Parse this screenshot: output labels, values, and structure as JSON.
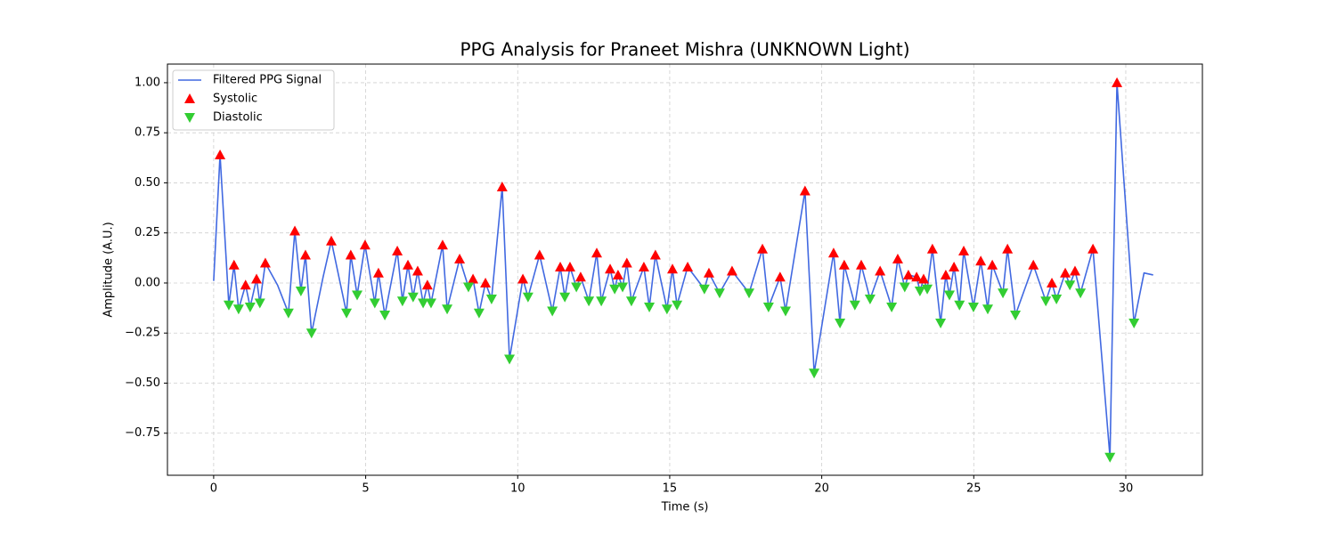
{
  "chart_data": {
    "type": "line",
    "title": "PPG Analysis for Praneet Mishra (UNKNOWN Light)",
    "x_label": "Time (s)",
    "y_label": "Amplitude (A.U.)",
    "xlim": [
      -1.52,
      32.52
    ],
    "ylim": [
      -0.96,
      1.093
    ],
    "xticks": [
      0,
      5,
      10,
      15,
      20,
      25,
      30
    ],
    "yticks": [
      {
        "value": -0.75,
        "label": "−0.75"
      },
      {
        "value": -0.5,
        "label": "−0.50"
      },
      {
        "value": -0.25,
        "label": "−0.25"
      },
      {
        "value": 0,
        "label": "0.00"
      },
      {
        "value": 0.25,
        "label": "0.25"
      },
      {
        "value": 0.5,
        "label": "0.50"
      },
      {
        "value": 0.75,
        "label": "0.75"
      },
      {
        "value": 1,
        "label": "1.00"
      }
    ],
    "grid": true,
    "legend": "upper-left",
    "series": [
      {
        "name": "Filtered PPG Signal",
        "kind": "line",
        "color": "#4169e1",
        "x": [
          0.0,
          0.21,
          0.5,
          0.67,
          0.82,
          1.05,
          1.2,
          1.41,
          1.52,
          1.7,
          2.1,
          2.46,
          2.67,
          2.87,
          3.02,
          3.22,
          3.6,
          3.87,
          4.37,
          4.51,
          4.72,
          4.98,
          5.3,
          5.42,
          5.63,
          6.04,
          6.21,
          6.39,
          6.56,
          6.71,
          6.89,
          7.03,
          7.15,
          7.53,
          7.68,
          8.09,
          8.38,
          8.53,
          8.73,
          8.94,
          9.14,
          9.49,
          9.73,
          10.17,
          10.34,
          10.72,
          11.14,
          11.4,
          11.55,
          11.72,
          11.93,
          12.07,
          12.34,
          12.6,
          12.75,
          13.04,
          13.19,
          13.3,
          13.45,
          13.59,
          13.74,
          14.15,
          14.33,
          14.53,
          14.91,
          15.09,
          15.24,
          15.59,
          16.14,
          16.29,
          16.64,
          17.05,
          17.61,
          18.05,
          18.25,
          18.63,
          18.81,
          19.45,
          19.75,
          20.39,
          20.6,
          20.74,
          21.09,
          21.3,
          21.59,
          21.92,
          22.3,
          22.5,
          22.73,
          22.85,
          23.12,
          23.23,
          23.35,
          23.47,
          23.64,
          23.91,
          24.08,
          24.2,
          24.35,
          24.53,
          24.67,
          24.99,
          25.23,
          25.46,
          25.61,
          25.96,
          26.11,
          26.37,
          26.96,
          27.37,
          27.57,
          27.72,
          28.01,
          28.16,
          28.33,
          28.51,
          28.92,
          29.48,
          29.71,
          30.27,
          30.6,
          30.9
        ],
        "values": [
          0.01,
          0.64,
          -0.11,
          0.09,
          -0.13,
          -0.01,
          -0.12,
          0.02,
          -0.1,
          0.1,
          -0.01,
          -0.15,
          0.26,
          -0.04,
          0.14,
          -0.25,
          0.03,
          0.21,
          -0.15,
          0.14,
          -0.06,
          0.19,
          -0.1,
          0.05,
          -0.16,
          0.16,
          -0.09,
          0.09,
          -0.07,
          0.06,
          -0.1,
          -0.01,
          -0.1,
          0.19,
          -0.13,
          0.12,
          -0.02,
          0.02,
          -0.15,
          0.0,
          -0.08,
          0.48,
          -0.38,
          0.02,
          -0.07,
          0.14,
          -0.14,
          0.08,
          -0.07,
          0.08,
          -0.02,
          0.03,
          -0.09,
          0.15,
          -0.09,
          0.07,
          -0.03,
          0.04,
          -0.02,
          0.1,
          -0.09,
          0.08,
          -0.12,
          0.14,
          -0.13,
          0.07,
          -0.11,
          0.08,
          -0.03,
          0.05,
          -0.05,
          0.06,
          -0.05,
          0.17,
          -0.12,
          0.03,
          -0.14,
          0.46,
          -0.45,
          0.15,
          -0.2,
          0.09,
          -0.11,
          0.09,
          -0.08,
          0.06,
          -0.12,
          0.12,
          -0.02,
          0.04,
          0.03,
          -0.04,
          0.02,
          -0.03,
          0.17,
          -0.2,
          0.04,
          -0.06,
          0.08,
          -0.11,
          0.16,
          -0.12,
          0.11,
          -0.13,
          0.09,
          -0.05,
          0.17,
          -0.16,
          0.09,
          -0.09,
          0.0,
          -0.08,
          0.05,
          -0.01,
          0.06,
          -0.05,
          0.17,
          -0.87,
          1.0,
          -0.2,
          0.05,
          0.04
        ]
      },
      {
        "name": "Systolic",
        "kind": "scatter-up",
        "color": "#ff0000",
        "x": [
          0.21,
          0.67,
          1.05,
          1.41,
          1.7,
          2.67,
          3.02,
          3.87,
          4.51,
          4.98,
          5.42,
          6.04,
          6.39,
          6.71,
          7.03,
          7.53,
          8.09,
          8.53,
          8.94,
          9.49,
          10.17,
          10.72,
          11.4,
          11.72,
          12.07,
          12.6,
          13.04,
          13.3,
          13.59,
          14.15,
          14.53,
          15.09,
          15.59,
          16.29,
          17.05,
          18.05,
          18.63,
          19.45,
          20.39,
          20.74,
          21.3,
          21.92,
          22.5,
          22.85,
          23.12,
          23.35,
          23.64,
          24.08,
          24.35,
          24.67,
          25.23,
          25.61,
          26.11,
          26.96,
          27.57,
          28.01,
          28.33,
          28.92,
          29.71
        ],
        "values": [
          0.64,
          0.09,
          -0.01,
          0.02,
          0.1,
          0.26,
          0.14,
          0.21,
          0.14,
          0.19,
          0.05,
          0.16,
          0.09,
          0.06,
          -0.01,
          0.19,
          0.12,
          0.02,
          0.0,
          0.48,
          0.02,
          0.14,
          0.08,
          0.08,
          0.03,
          0.15,
          0.07,
          0.04,
          0.1,
          0.08,
          0.14,
          0.07,
          0.08,
          0.05,
          0.06,
          0.17,
          0.03,
          0.46,
          0.15,
          0.09,
          0.09,
          0.06,
          0.12,
          0.04,
          0.03,
          0.02,
          0.17,
          0.04,
          0.08,
          0.16,
          0.11,
          0.09,
          0.17,
          0.09,
          0.0,
          0.05,
          0.06,
          0.17,
          1.0
        ]
      },
      {
        "name": "Diastolic",
        "kind": "scatter-down",
        "color": "#32cd32",
        "x": [
          0.5,
          0.82,
          1.2,
          1.52,
          2.46,
          2.87,
          3.22,
          4.37,
          4.72,
          5.3,
          5.63,
          6.21,
          6.56,
          6.89,
          7.15,
          7.68,
          8.38,
          8.73,
          9.14,
          9.73,
          10.34,
          11.14,
          11.55,
          11.93,
          12.34,
          12.75,
          13.19,
          13.45,
          13.74,
          14.33,
          14.91,
          15.24,
          16.14,
          16.64,
          17.61,
          18.25,
          18.81,
          19.75,
          20.6,
          21.09,
          21.59,
          22.3,
          22.73,
          23.23,
          23.47,
          23.91,
          24.2,
          24.53,
          24.99,
          25.46,
          25.96,
          26.37,
          27.37,
          27.72,
          28.16,
          28.51,
          29.48,
          30.27
        ],
        "values": [
          -0.11,
          -0.13,
          -0.12,
          -0.1,
          -0.15,
          -0.04,
          -0.25,
          -0.15,
          -0.06,
          -0.1,
          -0.16,
          -0.09,
          -0.07,
          -0.1,
          -0.1,
          -0.13,
          -0.02,
          -0.15,
          -0.08,
          -0.38,
          -0.07,
          -0.14,
          -0.07,
          -0.02,
          -0.09,
          -0.09,
          -0.03,
          -0.02,
          -0.09,
          -0.12,
          -0.13,
          -0.11,
          -0.03,
          -0.05,
          -0.05,
          -0.12,
          -0.14,
          -0.45,
          -0.2,
          -0.11,
          -0.08,
          -0.12,
          -0.02,
          -0.04,
          -0.03,
          -0.2,
          -0.06,
          -0.11,
          -0.12,
          -0.13,
          -0.05,
          -0.16,
          -0.09,
          -0.08,
          -0.01,
          -0.05,
          -0.87,
          -0.2
        ]
      }
    ]
  }
}
